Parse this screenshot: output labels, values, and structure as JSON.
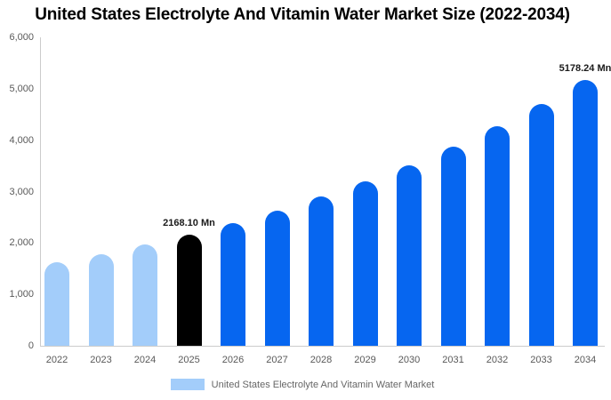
{
  "page": {
    "title": "United States Electrolyte And Vitamin Water Market Size (2022-2034)"
  },
  "colors": {
    "historical_bar": "#A3CDFA",
    "highlight_bar": "#000000",
    "forecast_bar": "#0666F0",
    "axis_line": "#CCCCCC",
    "tick_text": "#595959",
    "data_label_text": "#1A1A1A",
    "legend_text": "#666666",
    "title_text": "#000000"
  },
  "legend": {
    "label": "United States Electrolyte And Vitamin Water Market",
    "swatch_color": "#A3CDFA"
  },
  "chart_data": {
    "type": "bar",
    "title": "United States Electrolyte And Vitamin Water Market Size (2022-2034)",
    "unit": "Mn",
    "categories": [
      "2022",
      "2023",
      "2024",
      "2025",
      "2026",
      "2027",
      "2028",
      "2029",
      "2030",
      "2031",
      "2032",
      "2033",
      "2034"
    ],
    "values": [
      1622,
      1787,
      1968,
      2168.1,
      2388,
      2631,
      2898,
      3193,
      3517,
      3874,
      4268,
      4702,
      5178.24
    ],
    "bar_roles": [
      "historical",
      "historical",
      "historical",
      "highlight",
      "forecast",
      "forecast",
      "forecast",
      "forecast",
      "forecast",
      "forecast",
      "forecast",
      "forecast",
      "forecast"
    ],
    "ylim": [
      0,
      6000
    ],
    "ytick_interval": 1000,
    "yticks": [
      {
        "value": 0,
        "label": "0"
      },
      {
        "value": 1000,
        "label": "1,000"
      },
      {
        "value": 2000,
        "label": "2,000"
      },
      {
        "value": 3000,
        "label": "3,000"
      },
      {
        "value": 4000,
        "label": "4,000"
      },
      {
        "value": 5000,
        "label": "5,000"
      },
      {
        "value": 6000,
        "label": "6,000"
      }
    ],
    "annotations": [
      {
        "index": 3,
        "text": "2168.10 Mn"
      },
      {
        "index": 12,
        "text": "5178.24 Mn"
      }
    ],
    "grid": "none",
    "legend_position": "bottom"
  }
}
